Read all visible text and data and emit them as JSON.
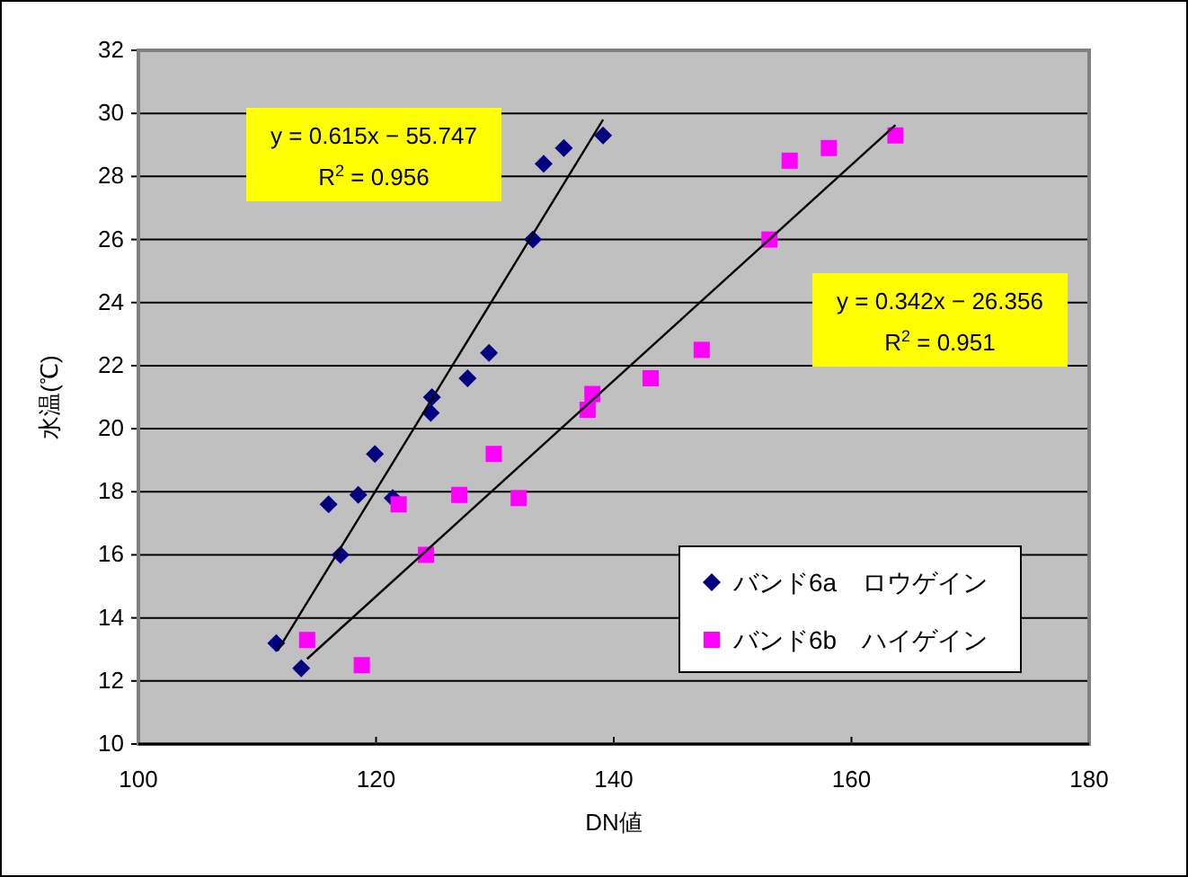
{
  "chart_data": {
    "type": "scatter",
    "xlabel": "DN値",
    "ylabel": "水温(℃)",
    "xlim": [
      100,
      180
    ],
    "xticks": [
      100,
      120,
      140,
      160,
      180
    ],
    "ylim": [
      10,
      32
    ],
    "yticks": [
      10,
      12,
      14,
      16,
      18,
      20,
      22,
      24,
      26,
      28,
      30,
      32
    ],
    "grid": "y",
    "legend": "bottom right",
    "series": [
      {
        "name": "バンド6a　ロウゲイン",
        "color": "#000080",
        "marker": "diamond",
        "x": [
          111.6,
          113.7,
          116.0,
          117.0,
          118.5,
          119.9,
          121.4,
          124.6,
          124.7,
          127.7,
          129.5,
          133.2,
          134.1,
          135.8,
          139.1
        ],
        "values": [
          13.2,
          12.4,
          17.6,
          16.0,
          17.9,
          19.2,
          17.8,
          20.5,
          21.0,
          21.6,
          22.4,
          26.0,
          28.4,
          28.9,
          29.3
        ]
      },
      {
        "name": "バンド6b　ハイゲイン",
        "color": "#ff00ff",
        "marker": "square",
        "x": [
          114.2,
          118.8,
          121.9,
          124.2,
          127.0,
          129.9,
          132.0,
          137.8,
          138.2,
          143.1,
          147.4,
          153.1,
          154.8,
          158.1,
          163.7
        ],
        "values": [
          13.3,
          12.5,
          17.6,
          16.0,
          17.9,
          19.2,
          17.8,
          20.6,
          21.1,
          21.6,
          22.5,
          26.0,
          28.5,
          28.9,
          29.3
        ]
      },
      {
        "type": "line",
        "color": "#000000",
        "x": [
          111.7,
          139.1
        ],
        "values": [
          12.95,
          29.8
        ]
      },
      {
        "type": "line",
        "color": "#000000",
        "x": [
          114.2,
          163.7
        ],
        "values": [
          12.7,
          29.63
        ]
      }
    ],
    "annotations": [
      "y = 0.615x − 55.747",
      "R$^{2}$ = 0.956",
      "y = 0.342x − 26.356",
      "R$^{2}$ = 0.951"
    ]
  }
}
